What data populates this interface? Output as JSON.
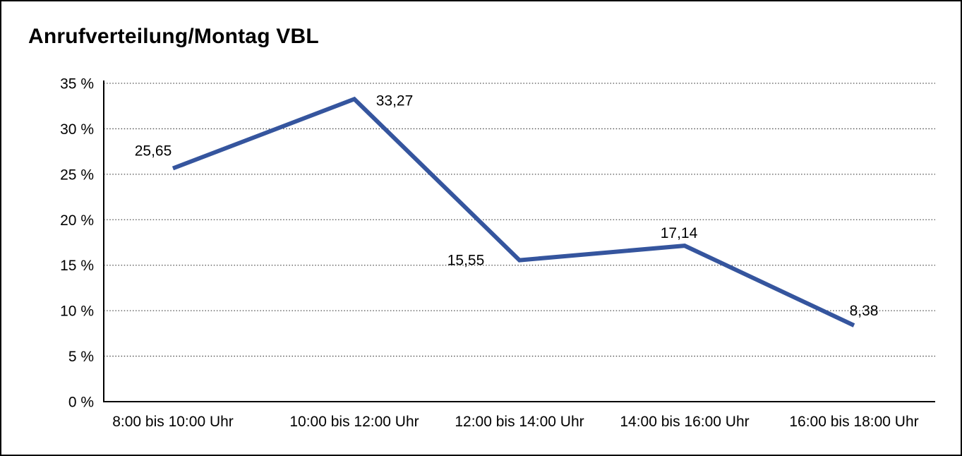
{
  "panel": {
    "background": "#ffffff",
    "border_color": "#000000"
  },
  "chart_data": {
    "type": "line",
    "title": "Anrufverteilung/Montag VBL",
    "categories": [
      "8:00 bis 10:00 Uhr",
      "10:00 bis 12:00 Uhr",
      "12:00 bis 14:00 Uhr",
      "14:00 bis 16:00 Uhr",
      "16:00 bis 18:00 Uhr"
    ],
    "values": [
      25.65,
      33.27,
      15.55,
      17.14,
      8.38
    ],
    "point_labels": [
      "25,65",
      "33,27",
      "15,55",
      "17,14",
      "8,38"
    ],
    "xlabel": "",
    "ylabel": "",
    "ylim": [
      0,
      35
    ],
    "y_tick_step": 5,
    "y_tick_labels": [
      "35 %",
      "30 %",
      "25 %",
      "20 %",
      "15 %",
      "10 %",
      "5 %",
      "0 %"
    ],
    "grid": "horizontal-dotted",
    "legend": "none",
    "line_color": "#35559E",
    "gridline_color": "#4d4d4d",
    "axis_color": "#000000",
    "text_color": "#000000"
  }
}
